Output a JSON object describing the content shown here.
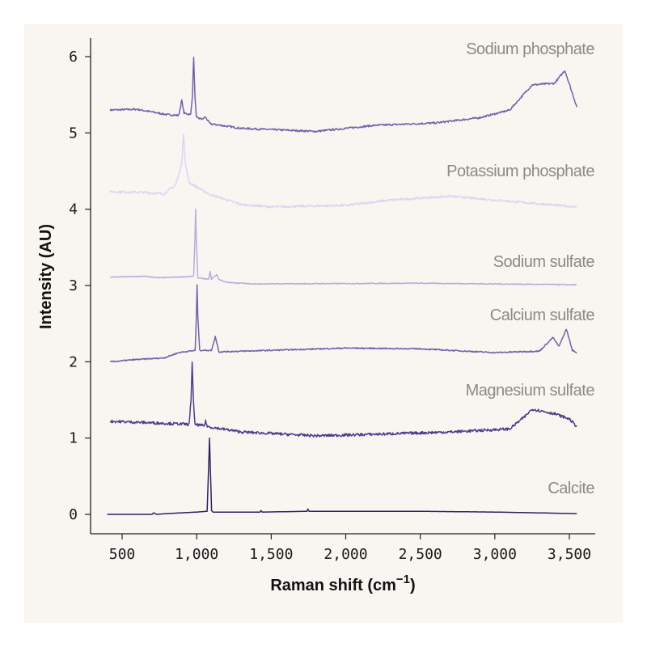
{
  "chart_data": {
    "type": "line",
    "title": "",
    "xlabel": "Raman shift (cm",
    "xlabel_sup": "−1",
    "xlabel_close": ")",
    "ylabel": "Intensity (AU)",
    "xlim": [
      330,
      3600
    ],
    "ylim": [
      -0.25,
      6.25
    ],
    "xticks": [
      500,
      1000,
      1500,
      2000,
      2500,
      3000,
      3500
    ],
    "xtick_labels": [
      "500",
      "1,000",
      "1,500",
      "2,000",
      "2,500",
      "3,000",
      "3,500"
    ],
    "yticks": [
      0,
      1,
      2,
      3,
      4,
      5,
      6
    ],
    "ytick_labels": [
      "0",
      "1",
      "2",
      "3",
      "4",
      "5",
      "6"
    ],
    "grid": false,
    "legend": "direct labels at right end of each series",
    "background_color": "#f9f6f1",
    "label_color": "#8d8985",
    "series": [
      {
        "name": "Sodium phosphate",
        "color": "#6b64ab",
        "points": [
          [
            420,
            5.3
          ],
          [
            600,
            5.31
          ],
          [
            800,
            5.24
          ],
          [
            880,
            5.23
          ],
          [
            900,
            5.43
          ],
          [
            915,
            5.26
          ],
          [
            960,
            5.24
          ],
          [
            972,
            5.5
          ],
          [
            980,
            6.0
          ],
          [
            988,
            5.5
          ],
          [
            998,
            5.2
          ],
          [
            1040,
            5.18
          ],
          [
            1058,
            5.21
          ],
          [
            1090,
            5.12
          ],
          [
            1300,
            5.06
          ],
          [
            1800,
            5.02
          ],
          [
            2200,
            5.1
          ],
          [
            2600,
            5.13
          ],
          [
            2900,
            5.2
          ],
          [
            3100,
            5.3
          ],
          [
            3250,
            5.63
          ],
          [
            3400,
            5.65
          ],
          [
            3470,
            5.82
          ],
          [
            3550,
            5.34
          ]
        ]
      },
      {
        "name": "Potassium phosphate",
        "color": "#d9d7ef",
        "points": [
          [
            420,
            4.23
          ],
          [
            650,
            4.22
          ],
          [
            780,
            4.2
          ],
          [
            860,
            4.32
          ],
          [
            900,
            4.6
          ],
          [
            912,
            5.0
          ],
          [
            924,
            4.6
          ],
          [
            950,
            4.35
          ],
          [
            1080,
            4.2
          ],
          [
            1300,
            4.06
          ],
          [
            1500,
            4.03
          ],
          [
            2000,
            4.05
          ],
          [
            2300,
            4.12
          ],
          [
            2700,
            4.17
          ],
          [
            3000,
            4.12
          ],
          [
            3300,
            4.07
          ],
          [
            3550,
            4.03
          ]
        ]
      },
      {
        "name": "Sodium sulfate",
        "color": "#b3afdd",
        "points": [
          [
            420,
            3.11
          ],
          [
            650,
            3.12
          ],
          [
            750,
            3.1
          ],
          [
            980,
            3.12
          ],
          [
            988,
            3.6
          ],
          [
            993,
            4.0
          ],
          [
            998,
            3.6
          ],
          [
            1008,
            3.1
          ],
          [
            1080,
            3.08
          ],
          [
            1090,
            3.18
          ],
          [
            1100,
            3.08
          ],
          [
            1125,
            3.13
          ],
          [
            1135,
            3.14
          ],
          [
            1150,
            3.08
          ],
          [
            1200,
            3.04
          ],
          [
            1400,
            3.02
          ],
          [
            2500,
            3.03
          ],
          [
            3550,
            3.01
          ]
        ]
      },
      {
        "name": "Calcium sulfate",
        "color": "#6b64ab",
        "points": [
          [
            420,
            2.0
          ],
          [
            600,
            2.03
          ],
          [
            780,
            2.05
          ],
          [
            880,
            2.12
          ],
          [
            990,
            2.15
          ],
          [
            998,
            2.6
          ],
          [
            1003,
            3.0
          ],
          [
            1008,
            2.6
          ],
          [
            1020,
            2.15
          ],
          [
            1100,
            2.15
          ],
          [
            1125,
            2.33
          ],
          [
            1150,
            2.13
          ],
          [
            1500,
            2.15
          ],
          [
            2000,
            2.18
          ],
          [
            2500,
            2.17
          ],
          [
            3000,
            2.12
          ],
          [
            3300,
            2.14
          ],
          [
            3390,
            2.32
          ],
          [
            3430,
            2.2
          ],
          [
            3480,
            2.43
          ],
          [
            3520,
            2.15
          ],
          [
            3550,
            2.12
          ]
        ]
      },
      {
        "name": "Magnesium sulfate",
        "color": "#4b3d8d",
        "points": [
          [
            420,
            1.22
          ],
          [
            700,
            1.2
          ],
          [
            950,
            1.18
          ],
          [
            962,
            1.5
          ],
          [
            970,
            2.0
          ],
          [
            978,
            1.5
          ],
          [
            988,
            1.18
          ],
          [
            1050,
            1.16
          ],
          [
            1060,
            1.22
          ],
          [
            1072,
            1.15
          ],
          [
            1300,
            1.08
          ],
          [
            1800,
            1.03
          ],
          [
            2200,
            1.05
          ],
          [
            2700,
            1.08
          ],
          [
            3100,
            1.12
          ],
          [
            3200,
            1.28
          ],
          [
            3250,
            1.38
          ],
          [
            3400,
            1.32
          ],
          [
            3500,
            1.25
          ],
          [
            3550,
            1.15
          ]
        ]
      },
      {
        "name": "Calcite",
        "color": "#2d2266",
        "points": [
          [
            400,
            0.0
          ],
          [
            700,
            0.0
          ],
          [
            712,
            0.02
          ],
          [
            730,
            0.0
          ],
          [
            800,
            0.01
          ],
          [
            1000,
            0.03
          ],
          [
            1070,
            0.04
          ],
          [
            1080,
            0.6
          ],
          [
            1086,
            1.0
          ],
          [
            1092,
            0.6
          ],
          [
            1100,
            0.05
          ],
          [
            1110,
            0.03
          ],
          [
            1425,
            0.03
          ],
          [
            1432,
            0.05
          ],
          [
            1440,
            0.03
          ],
          [
            1740,
            0.04
          ],
          [
            1746,
            0.07
          ],
          [
            1754,
            0.04
          ],
          [
            2500,
            0.04
          ],
          [
            3000,
            0.03
          ],
          [
            3550,
            0.01
          ]
        ]
      }
    ]
  }
}
